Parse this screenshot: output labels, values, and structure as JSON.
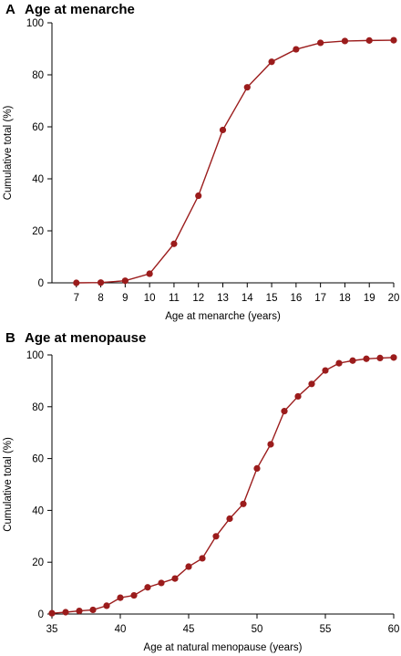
{
  "chart_data": [
    {
      "type": "line",
      "panel_letter": "A",
      "title": "Age at menarche",
      "xlabel": "Age at menarche (years)",
      "ylabel": "Cumulative total (%)",
      "xlim": [
        6,
        20
      ],
      "ylim": [
        0,
        100
      ],
      "xticks": [
        7,
        8,
        9,
        10,
        11,
        12,
        13,
        14,
        15,
        16,
        17,
        18,
        19,
        20
      ],
      "yticks": [
        0,
        20,
        40,
        60,
        80,
        100
      ],
      "grid": false,
      "color": "#9b1c1c",
      "series": [
        {
          "x": [
            7,
            8,
            9,
            10,
            11,
            12,
            13,
            14,
            15,
            16,
            17,
            18,
            19,
            20
          ],
          "y": [
            0,
            0.1,
            0.8,
            3.5,
            15,
            33.5,
            58.8,
            75.2,
            85,
            89.8,
            92.3,
            93,
            93.2,
            93.3
          ]
        }
      ]
    },
    {
      "type": "line",
      "panel_letter": "B",
      "title": "Age at menopause",
      "xlabel": "Age at natural menopause (years)",
      "ylabel": "Cumulative total (%)",
      "xlim": [
        35,
        60
      ],
      "ylim": [
        0,
        100
      ],
      "xticks": [
        35,
        40,
        45,
        50,
        55,
        60
      ],
      "yticks": [
        0,
        20,
        40,
        60,
        80,
        100
      ],
      "grid": false,
      "color": "#9b1c1c",
      "series": [
        {
          "x": [
            35,
            36,
            37,
            38,
            39,
            40,
            41,
            42,
            43,
            44,
            45,
            46,
            47,
            48,
            49,
            50,
            51,
            52,
            53,
            54,
            55,
            56,
            57,
            58,
            59,
            60
          ],
          "y": [
            0.3,
            0.7,
            1.2,
            1.6,
            3.2,
            6.3,
            7.2,
            10.3,
            12.0,
            13.7,
            18.3,
            21.5,
            30.0,
            36.8,
            42.5,
            56.2,
            65.5,
            78.3,
            84.0,
            88.8,
            94.0,
            96.8,
            97.8,
            98.5,
            98.8,
            99.0
          ]
        }
      ]
    }
  ]
}
